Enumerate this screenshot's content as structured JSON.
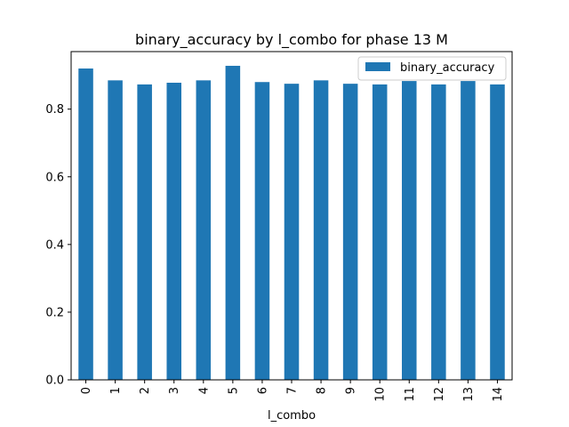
{
  "chart_data": {
    "type": "bar",
    "title": "binary_accuracy by l_combo for phase 13 M",
    "xlabel": "l_combo",
    "ylabel": "",
    "categories": [
      "0",
      "1",
      "2",
      "3",
      "4",
      "5",
      "6",
      "7",
      "8",
      "9",
      "10",
      "11",
      "12",
      "13",
      "14"
    ],
    "series": [
      {
        "name": "binary_accuracy",
        "color": "#1f77b4",
        "values": [
          0.92,
          0.885,
          0.873,
          0.878,
          0.885,
          0.928,
          0.88,
          0.875,
          0.885,
          0.875,
          0.873,
          0.883,
          0.873,
          0.883,
          0.873
        ]
      }
    ],
    "ylim": [
      0.0,
      0.97
    ],
    "yticks": [
      0.0,
      0.2,
      0.4,
      0.6,
      0.8
    ],
    "ytick_labels": [
      "0.0",
      "0.2",
      "0.4",
      "0.6",
      "0.8"
    ],
    "legend_position": "top-right",
    "grid": false
  }
}
